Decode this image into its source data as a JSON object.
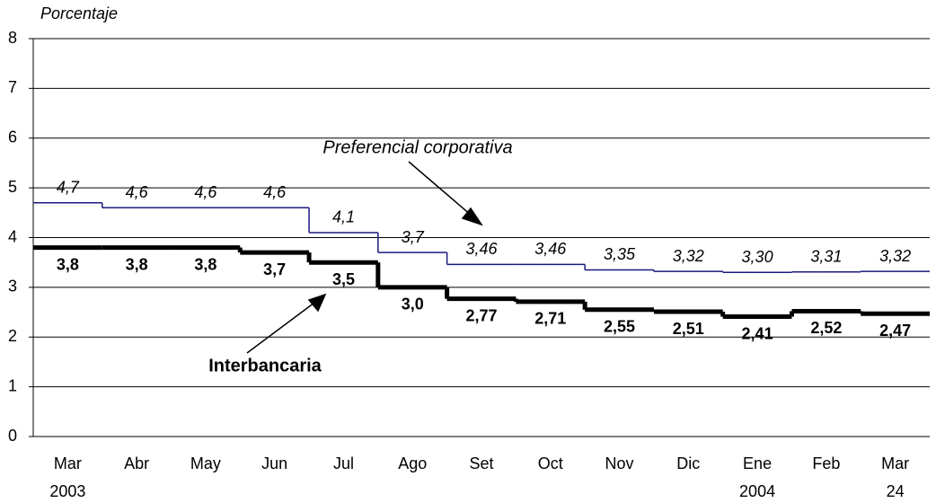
{
  "chart_data": {
    "type": "step",
    "y_label": "Porcentaje",
    "categories": [
      "Mar",
      "Abr",
      "May",
      "Jun",
      "Jul",
      "Ago",
      "Set",
      "Oct",
      "Nov",
      "Dic",
      "Ene",
      "Feb",
      "Mar"
    ],
    "category_sublabels": [
      "2003",
      null,
      null,
      null,
      null,
      null,
      null,
      null,
      null,
      null,
      "2004",
      null,
      "24"
    ],
    "ylim": [
      0,
      8
    ],
    "yticks": [
      0,
      1,
      2,
      3,
      4,
      5,
      6,
      7,
      8
    ],
    "grid": true,
    "series": [
      {
        "name": "Preferencial corporativa",
        "color": "#1a1a80",
        "values": [
          4.7,
          4.6,
          4.6,
          4.6,
          4.1,
          3.7,
          3.46,
          3.46,
          3.35,
          3.32,
          3.3,
          3.31,
          3.32
        ],
        "value_labels": [
          "4,7",
          "4,6",
          "4,6",
          "4,6",
          "4,1",
          "3,7",
          "3,46",
          "3,46",
          "3,35",
          "3,32",
          "3,30",
          "3,31",
          "3,32"
        ]
      },
      {
        "name": "Interbancaria",
        "color": "#000000",
        "values": [
          3.8,
          3.8,
          3.8,
          3.7,
          3.5,
          3.0,
          2.77,
          2.71,
          2.55,
          2.51,
          2.41,
          2.52,
          2.47
        ],
        "value_labels": [
          "3,8",
          "3,8",
          "3,8",
          "3,7",
          "3,5",
          "3,0",
          "2,77",
          "2,71",
          "2,55",
          "2,51",
          "2,41",
          "2,52",
          "2,47"
        ]
      }
    ]
  }
}
